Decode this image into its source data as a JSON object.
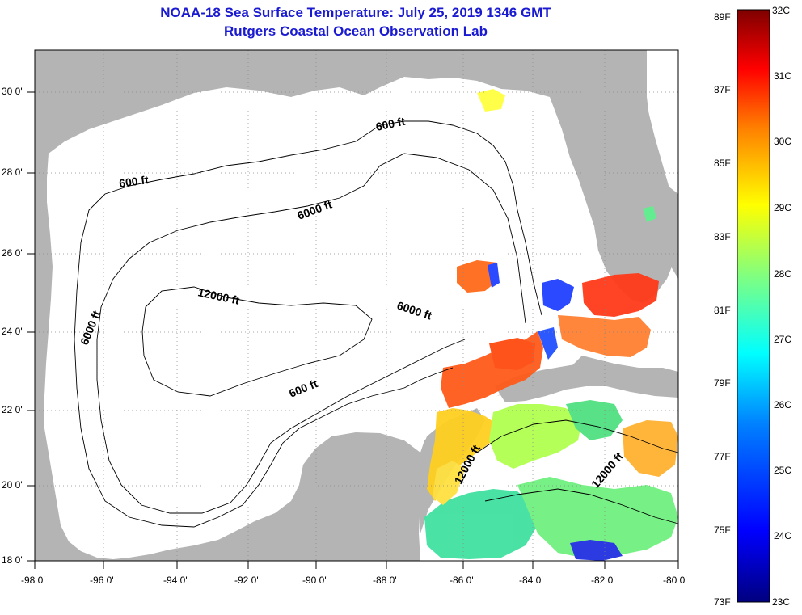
{
  "title": {
    "line1": "NOAA-18 Sea Surface Temperature:  July 25, 2019 1346 GMT",
    "line2": "Rutgers Coastal Ocean Observation Lab"
  },
  "map": {
    "lat_labels": [
      "30 0'",
      "28 0'",
      "26 0'",
      "24 0'",
      "22 0'",
      "20 0'",
      "18 0'"
    ],
    "lon_labels": [
      "-98 0'",
      "-96 0'",
      "-94 0'",
      "-92 0'",
      "-90 0'",
      "-88 0'",
      "-86 0'",
      "-84 0'",
      "-82 0'",
      "-80 0'"
    ],
    "contour_labels": [
      "600 ft",
      "600 ft",
      "600 ft",
      "6000 ft",
      "6000 ft",
      "6000 ft",
      "12000 ft",
      "12000 ft",
      "12000 ft"
    ],
    "colors": {
      "land": "#b4b4b4",
      "ocean_nodata": "#ffffff",
      "contour": "#000000"
    }
  },
  "colorbar": {
    "celsius_labels": [
      "32C",
      "31C",
      "30C",
      "29C",
      "28C",
      "27C",
      "26C",
      "25C",
      "24C",
      "23C"
    ],
    "fahrenheit_labels": [
      "89F",
      "87F",
      "85F",
      "83F",
      "81F",
      "79F",
      "77F",
      "75F",
      "73F"
    ],
    "range_c": [
      23,
      32
    ],
    "scale": [
      "#00007f",
      "#0000ff",
      "#0080ff",
      "#00ffff",
      "#80ff80",
      "#ffff00",
      "#ff8000",
      "#ff0000",
      "#7f0000"
    ]
  }
}
